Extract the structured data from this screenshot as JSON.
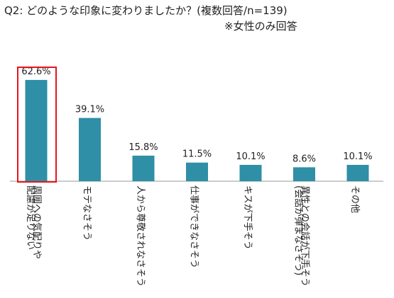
{
  "chart_data": {
    "type": "bar",
    "title": "Q2: どのような印象に変わりましたか？(複数回答/n=139)",
    "subtitle": "※女性のみ回答",
    "categories": [
      [
        "周囲への気配りや",
        "配慮が足りない"
      ],
      [
        "モテなさそう"
      ],
      [
        "人から尊敬されなさそう"
      ],
      [
        "仕事ができなさそう"
      ],
      [
        "キスが下手そう"
      ],
      [
        "異性との会話が下手そう",
        "(会話が弾まなさそう)"
      ],
      [
        "その他"
      ]
    ],
    "values": [
      62.6,
      39.1,
      15.8,
      11.5,
      10.1,
      8.6,
      10.1
    ],
    "value_labels": [
      "62.6%",
      "39.1%",
      "15.8%",
      "11.5%",
      "10.1%",
      "8.6%",
      "10.1%"
    ],
    "highlighted_index": 0,
    "ylim": [
      0,
      70
    ],
    "colors": {
      "bar": "#2e8fa6",
      "highlight": "#e8141c",
      "axis": "#9a9a9a"
    }
  }
}
